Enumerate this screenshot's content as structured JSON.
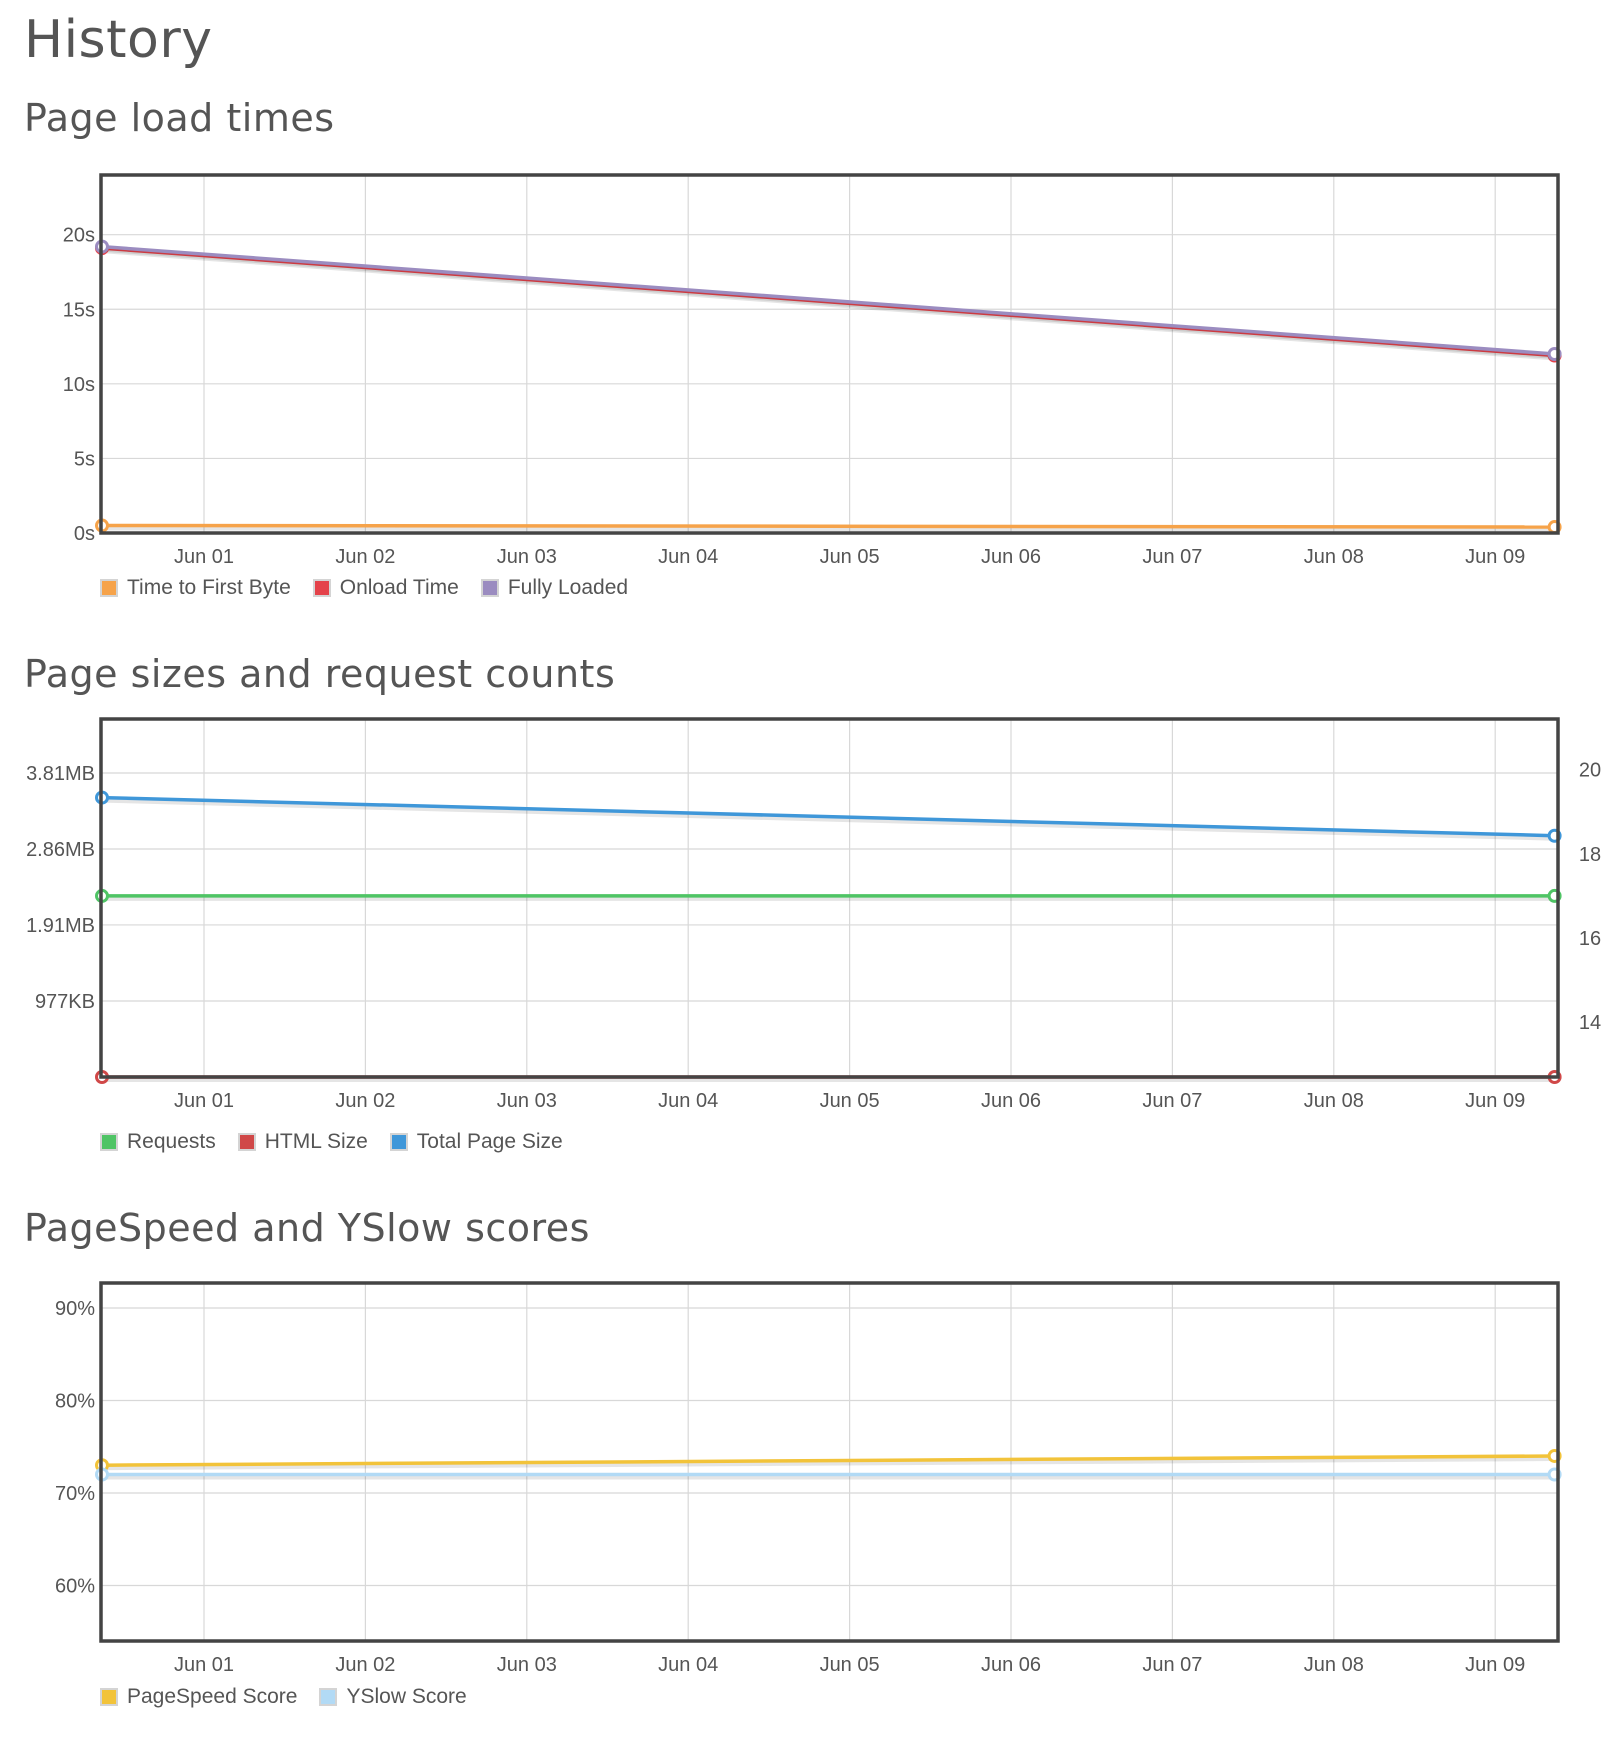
{
  "page": {
    "title": "History"
  },
  "sections": [
    {
      "title": "Page load times"
    },
    {
      "title": "Page sizes and request counts"
    },
    {
      "title": "PageSpeed and YSlow scores"
    }
  ],
  "chart_data": [
    {
      "type": "line",
      "x_tick_labels": [
        "Jun 01",
        "Jun 02",
        "Jun 03",
        "Jun 04",
        "Jun 05",
        "Jun 06",
        "Jun 07",
        "Jun 08",
        "Jun 09"
      ],
      "x": [
        "May 31",
        "Jun 09"
      ],
      "ylim": [
        0,
        24
      ],
      "y_ticks": [
        0,
        5,
        10,
        15,
        20
      ],
      "y_tick_labels": [
        "0s",
        "5s",
        "10s",
        "15s",
        "20s"
      ],
      "grid": true,
      "legend_position": "bottom-left",
      "series": [
        {
          "name": "Time to First Byte",
          "color": "#f6a34a",
          "values": [
            0.5,
            0.4
          ]
        },
        {
          "name": "Onload Time",
          "color": "#e4424a",
          "values": [
            19.1,
            11.9
          ]
        },
        {
          "name": "Fully Loaded",
          "color": "#9b8cc0",
          "values": [
            19.2,
            12.0
          ]
        }
      ]
    },
    {
      "type": "line",
      "x_tick_labels": [
        "Jun 01",
        "Jun 02",
        "Jun 03",
        "Jun 04",
        "Jun 05",
        "Jun 06",
        "Jun 07",
        "Jun 08",
        "Jun 09"
      ],
      "x": [
        "May 31",
        "Jun 09"
      ],
      "ylim_left_kb": [
        0,
        4600
      ],
      "y_ticks_left_kb": [
        977,
        1954,
        2930,
        3906
      ],
      "y_tick_labels_left": [
        "977KB",
        "1.91MB",
        "2.86MB",
        "3.81MB"
      ],
      "ylim_right": [
        12.7,
        21.2
      ],
      "y_ticks_right": [
        14,
        16,
        18,
        20
      ],
      "y_tick_labels_right": [
        "14",
        "16",
        "18",
        "20"
      ],
      "grid": true,
      "legend_position": "bottom-left",
      "series": [
        {
          "name": "Requests",
          "axis": "right",
          "color": "#4fc465",
          "values": [
            17,
            17
          ]
        },
        {
          "name": "HTML Size",
          "axis": "left",
          "unit": "KB",
          "color": "#d04848",
          "values": [
            0,
            0
          ]
        },
        {
          "name": "Total Page Size",
          "axis": "left",
          "unit": "KB",
          "color": "#3f97d9",
          "values": [
            3590,
            3100
          ]
        }
      ]
    },
    {
      "type": "line",
      "x_tick_labels": [
        "Jun 01",
        "Jun 02",
        "Jun 03",
        "Jun 04",
        "Jun 05",
        "Jun 06",
        "Jun 07",
        "Jun 08",
        "Jun 09"
      ],
      "x": [
        "May 31",
        "Jun 09"
      ],
      "ylim": [
        54,
        92.7
      ],
      "y_ticks": [
        60,
        70,
        80,
        90
      ],
      "y_tick_labels": [
        "60%",
        "70%",
        "80%",
        "90%"
      ],
      "grid": true,
      "legend_position": "bottom-left",
      "series": [
        {
          "name": "PageSpeed Score",
          "color": "#f2c33a",
          "values": [
            73,
            74
          ]
        },
        {
          "name": "YSlow Score",
          "color": "#b2daf5",
          "values": [
            72,
            72
          ]
        }
      ]
    }
  ]
}
